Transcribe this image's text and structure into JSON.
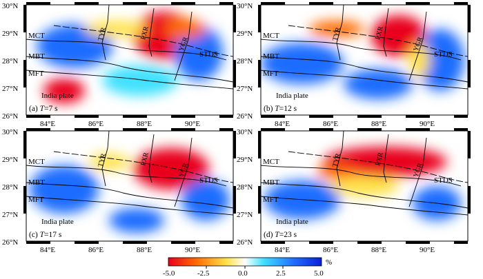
{
  "panels": [
    {
      "id": "a",
      "label": "(a) ",
      "tvar": "T",
      "tval": "=7 s"
    },
    {
      "id": "b",
      "label": "(b) ",
      "tvar": "T",
      "tval": "=12 s"
    },
    {
      "id": "c",
      "label": "(c) ",
      "tvar": "T",
      "tval": "=17 s"
    },
    {
      "id": "d",
      "label": "(d) ",
      "tvar": "T",
      "tval": "=23 s"
    }
  ],
  "lat_ticks": [
    "30°N",
    "29°N",
    "28°N",
    "27°N",
    "26°N"
  ],
  "lon_ticks": [
    "84°E",
    "86°E",
    "88°E",
    "90°E"
  ],
  "fault_labels": {
    "mct": "MCT",
    "mbt": "MBT",
    "mft": "MFT",
    "stds": "STDS",
    "tyr": "TYR",
    "pxr": "PXR",
    "ygr": "YGR"
  },
  "plate_label": "India plate",
  "colorbar": {
    "unit": "%",
    "ticks": [
      "-5.0",
      "-2.5",
      "0.0",
      "2.5",
      "5.0"
    ],
    "range": [
      -5.0,
      5.0
    ],
    "colors": [
      "#e8001c",
      "#ff6a00",
      "#ffe24a",
      "#ffffff",
      "#41e1ff",
      "#1f6dff",
      "#0a1fd6"
    ]
  }
}
